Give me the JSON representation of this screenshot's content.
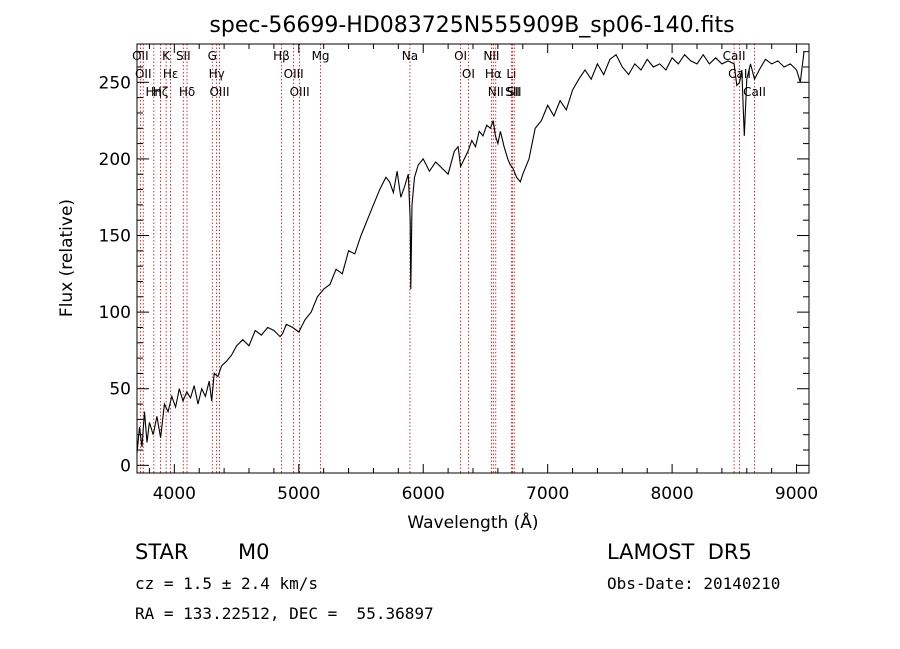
{
  "chart_data": {
    "type": "line",
    "title": "spec-56699-HD083725N555909B_sp06-140.fits",
    "xlabel": "Wavelength (Å)",
    "ylabel": "Flux (relative)",
    "xlim": [
      3700,
      9100
    ],
    "ylim": [
      -5,
      275
    ],
    "xticks": [
      4000,
      5000,
      6000,
      7000,
      8000,
      9000
    ],
    "yticks": [
      0,
      50,
      100,
      150,
      200,
      250
    ],
    "series": [
      {
        "x": [
          3700,
          3720,
          3740,
          3760,
          3780,
          3800,
          3830,
          3860,
          3890,
          3920,
          3950,
          3980,
          4010,
          4040,
          4070,
          4100,
          4130,
          4160,
          4190,
          4220,
          4250,
          4280,
          4300,
          4320,
          4350,
          4380,
          4420,
          4460,
          4500,
          4550,
          4600,
          4650,
          4700,
          4750,
          4800,
          4850,
          4870,
          4900,
          4950,
          5000,
          5050,
          5100,
          5150,
          5200,
          5250,
          5300,
          5350,
          5400,
          5450,
          5500,
          5550,
          5600,
          5650,
          5700,
          5730,
          5760,
          5790,
          5820,
          5850,
          5880,
          5895,
          5900,
          5910,
          5930,
          5960,
          6000,
          6050,
          6100,
          6150,
          6200,
          6250,
          6280,
          6300,
          6330,
          6360,
          6390,
          6420,
          6450,
          6480,
          6510,
          6540,
          6562,
          6580,
          6600,
          6620,
          6650,
          6680,
          6700,
          6720,
          6750,
          6780,
          6800,
          6850,
          6900,
          6950,
          7000,
          7050,
          7100,
          7150,
          7200,
          7250,
          7300,
          7350,
          7400,
          7450,
          7500,
          7550,
          7600,
          7650,
          7700,
          7750,
          7800,
          7850,
          7900,
          7950,
          8000,
          8050,
          8100,
          8150,
          8200,
          8250,
          8300,
          8350,
          8400,
          8450,
          8498,
          8520,
          8542,
          8560,
          8580,
          8600,
          8630,
          8662,
          8700,
          8750,
          8800,
          8850,
          8900,
          8950,
          9000,
          9030,
          9060
        ],
        "y": [
          8,
          25,
          12,
          35,
          15,
          28,
          20,
          32,
          18,
          40,
          35,
          45,
          38,
          50,
          42,
          48,
          44,
          52,
          40,
          50,
          45,
          55,
          42,
          60,
          58,
          65,
          68,
          72,
          78,
          82,
          78,
          88,
          85,
          90,
          88,
          84,
          86,
          92,
          90,
          87,
          95,
          100,
          110,
          115,
          118,
          128,
          125,
          140,
          138,
          150,
          160,
          170,
          180,
          188,
          185,
          178,
          192,
          175,
          182,
          190,
          160,
          115,
          170,
          188,
          196,
          200,
          192,
          198,
          194,
          190,
          205,
          208,
          195,
          200,
          205,
          212,
          208,
          218,
          215,
          222,
          220,
          225,
          215,
          210,
          218,
          208,
          200,
          196,
          194,
          188,
          185,
          190,
          200,
          220,
          225,
          235,
          228,
          238,
          232,
          245,
          252,
          258,
          252,
          262,
          255,
          265,
          268,
          260,
          255,
          262,
          258,
          265,
          260,
          262,
          258,
          266,
          262,
          268,
          264,
          262,
          268,
          262,
          266,
          262,
          264,
          262,
          248,
          250,
          258,
          215,
          252,
          262,
          252,
          258,
          265,
          262,
          264,
          260,
          262,
          258,
          250,
          270
        ]
      }
    ],
    "line_markers": [
      {
        "x": 3727,
        "label": "OII"
      },
      {
        "x": 3750,
        "label": "OII"
      },
      {
        "x": 3835,
        "label": "Hη"
      },
      {
        "x": 3889,
        "label": "Hζ"
      },
      {
        "x": 3934,
        "label": "K"
      },
      {
        "x": 3970,
        "label": "Hε"
      },
      {
        "x": 4072,
        "label": "SII"
      },
      {
        "x": 4102,
        "label": "Hδ"
      },
      {
        "x": 4305,
        "label": "G"
      },
      {
        "x": 4340,
        "label": "Hγ"
      },
      {
        "x": 4363,
        "label": "OIII"
      },
      {
        "x": 4861,
        "label": "Hβ"
      },
      {
        "x": 4959,
        "label": "OIII"
      },
      {
        "x": 5007,
        "label": "OIII"
      },
      {
        "x": 5175,
        "label": "Mg"
      },
      {
        "x": 5893,
        "label": "Na"
      },
      {
        "x": 6300,
        "label": "OI"
      },
      {
        "x": 6363,
        "label": "OI"
      },
      {
        "x": 6548,
        "label": "NII"
      },
      {
        "x": 6563,
        "label": "Hα"
      },
      {
        "x": 6583,
        "label": "NII"
      },
      {
        "x": 6708,
        "label": "Li"
      },
      {
        "x": 6717,
        "label": "SII"
      },
      {
        "x": 6731,
        "label": "SII"
      },
      {
        "x": 8498,
        "label": "CaII"
      },
      {
        "x": 8542,
        "label": "CaII"
      },
      {
        "x": 8662,
        "label": "CaII"
      }
    ],
    "line_color": "#000000",
    "marker_color": "#cc0000",
    "grid": false
  },
  "info": {
    "object_class": "STAR",
    "subclass": "M0",
    "survey": "LAMOST  DR5",
    "velocity": "cz = 1.5 ± 2.4 km/s",
    "obs_date": "Obs-Date: 20140210",
    "coords": "RA = 133.22512, DEC =  55.36897"
  }
}
